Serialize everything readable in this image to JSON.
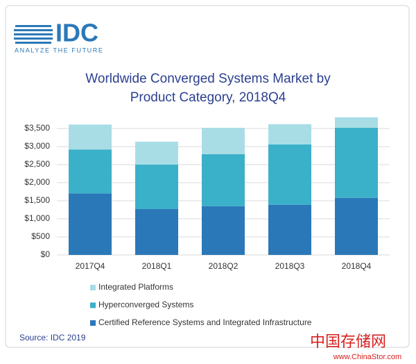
{
  "logo": {
    "name": "IDC",
    "tagline": "ANALYZE THE FUTURE"
  },
  "chart_data": {
    "type": "stacked-bar",
    "title": "Worldwide Converged Systems Market by Product Category, 2018Q4",
    "categories": [
      "2017Q4",
      "2018Q1",
      "2018Q2",
      "2018Q3",
      "2018Q4"
    ],
    "series": [
      {
        "name": "Certified Reference Systems and Integrated Infrastructure",
        "color": "#2a78b8",
        "values": [
          1700,
          1270,
          1350,
          1390,
          1580
        ]
      },
      {
        "name": "Hyperconverged Systems",
        "color": "#3bb0c9",
        "values": [
          1220,
          1230,
          1440,
          1670,
          1940
        ]
      },
      {
        "name": "Integrated Platforms",
        "color": "#a8dde6",
        "values": [
          690,
          635,
          730,
          560,
          290
        ]
      }
    ],
    "ylim": [
      0,
      3800
    ],
    "yticks": [
      {
        "value": 0,
        "label": "$0"
      },
      {
        "value": 500,
        "label": "$500"
      },
      {
        "value": 1000,
        "label": "$1,000"
      },
      {
        "value": 1500,
        "label": "$1,500"
      },
      {
        "value": 2000,
        "label": "$2,000"
      },
      {
        "value": 2500,
        "label": "$2,500"
      },
      {
        "value": 3000,
        "label": "$3,000"
      },
      {
        "value": 3500,
        "label": "$3,500"
      }
    ],
    "grid": true
  },
  "source": "Source: IDC 2019",
  "watermark": {
    "name": "中国存储网",
    "url": "www.ChinaStor.com"
  }
}
